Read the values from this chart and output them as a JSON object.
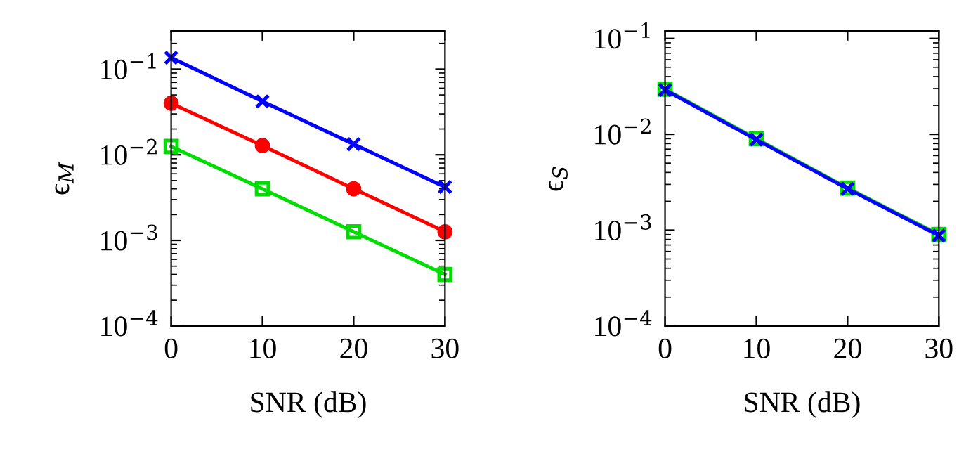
{
  "chart_data": [
    {
      "type": "line",
      "xlabel": "SNR (dB)",
      "ylabel": "ϵ$_{M}$",
      "x": [
        0,
        10,
        20,
        30
      ],
      "log": "y",
      "line_style": "solid",
      "xlim": [
        0,
        30
      ],
      "xticks": [
        0,
        10,
        20,
        30
      ],
      "ylim": [
        0.0001,
        0.28
      ],
      "yticks": [
        {
          "value": 0.0001,
          "label": "10$^{−4}$"
        },
        {
          "value": 0.001,
          "label": "10$^{−3}$"
        },
        {
          "value": 0.01,
          "label": "10$^{−2}$"
        },
        {
          "value": 0.1,
          "label": "10$^{−1}$"
        }
      ],
      "series": [
        {
          "color": "#0000ff",
          "marker": "cross",
          "values": [
            0.136,
            0.042,
            0.0133,
            0.0042
          ]
        },
        {
          "color": "#ff0000",
          "marker": "circle",
          "values": [
            0.04,
            0.0128,
            0.004,
            0.00126
          ]
        },
        {
          "color": "#00dd00",
          "marker": "square",
          "values": [
            0.0125,
            0.004,
            0.00126,
            0.0004
          ]
        }
      ]
    },
    {
      "type": "line",
      "xlabel": "SNR (dB)",
      "ylabel": "ϵ$_{S}$",
      "x": [
        0,
        10,
        20,
        30
      ],
      "log": "y",
      "line_style": "solid",
      "xlim": [
        0,
        30
      ],
      "xticks": [
        0,
        10,
        20,
        30
      ],
      "ylim": [
        0.0001,
        0.12
      ],
      "yticks": [
        {
          "value": 0.0001,
          "label": "10$^{−4}$"
        },
        {
          "value": 0.001,
          "label": "10$^{−3}$"
        },
        {
          "value": 0.01,
          "label": "10$^{−2}$"
        },
        {
          "value": 0.1,
          "label": "10$^{−1}$"
        }
      ],
      "series": [
        {
          "color": "#00dd00",
          "marker": "square",
          "values": [
            0.0295,
            0.009,
            0.00275,
            0.0009
          ]
        },
        {
          "color": "#0000ff",
          "marker": "cross",
          "values": [
            0.029,
            0.0088,
            0.0027,
            0.00088
          ]
        }
      ]
    }
  ]
}
